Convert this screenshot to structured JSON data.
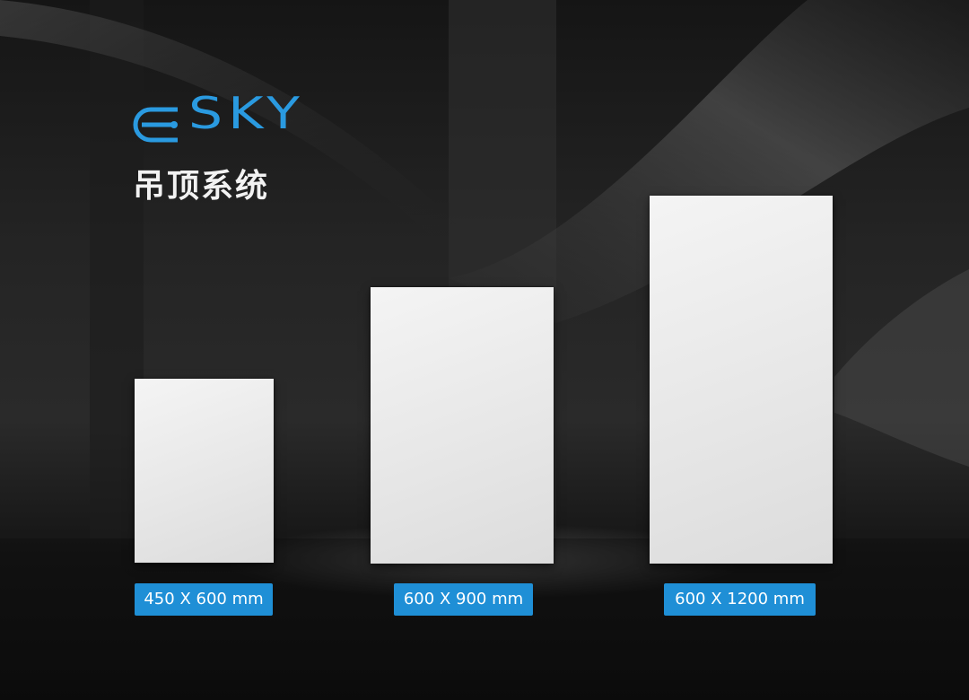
{
  "header": {
    "logo": "SKY",
    "title": "吊顶系统"
  },
  "panels": [
    {
      "label": "450 X 600 mm"
    },
    {
      "label": "600 X 900 mm"
    },
    {
      "label": "600 X 1200 mm"
    }
  ]
}
